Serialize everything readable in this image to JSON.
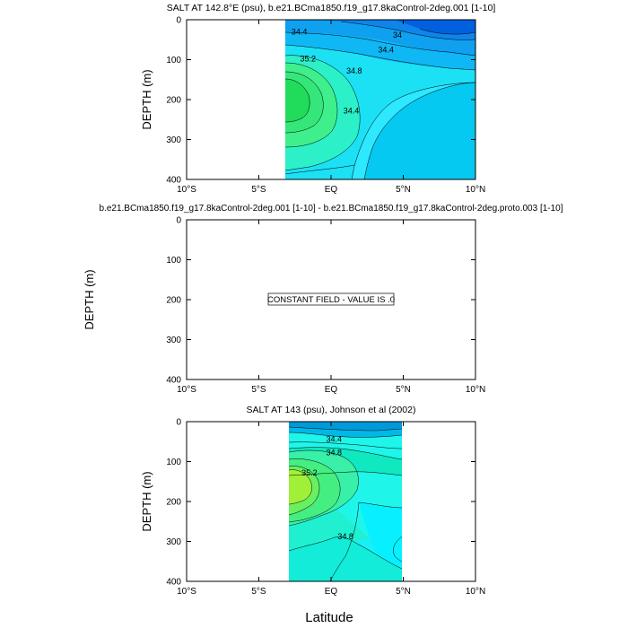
{
  "figure": {
    "x_axis_label": "Latitude"
  },
  "chart_data": [
    {
      "type": "contour",
      "title": "SALT AT 142.8°E (psu), b.e21.BCma1850.f19_g17.8kaControl-2deg.001 [1-10]",
      "ylabel": "DEPTH (m)",
      "xlabel": "",
      "x_ticks": [
        "10°S",
        "5°S",
        "EQ",
        "5°N",
        "10°N"
      ],
      "x_tick_values": [
        -10,
        -5,
        0,
        5,
        10
      ],
      "y_ticks": [
        "0",
        "100",
        "200",
        "300",
        "400"
      ],
      "y_tick_values": [
        0,
        100,
        200,
        300,
        400
      ],
      "xlim": [
        -10,
        10
      ],
      "ylim": [
        400,
        0
      ],
      "data_extent_lat": [
        -2.8,
        10
      ],
      "contour_labels": [
        {
          "text": "34.4",
          "lat": -2.2,
          "depth": 30
        },
        {
          "text": "34",
          "lat": 4.6,
          "depth": 38
        },
        {
          "text": "34.4",
          "lat": 3.8,
          "depth": 75
        },
        {
          "text": "35.2",
          "lat": -1.6,
          "depth": 98
        },
        {
          "text": "34.8",
          "lat": 1.6,
          "depth": 128
        },
        {
          "text": "34.4",
          "lat": 1.4,
          "depth": 228
        }
      ]
    },
    {
      "type": "contour",
      "title": "b.e21.BCma1850.f19_g17.8kaControl-2deg.001 [1-10] - b.e21.BCma1850.f19_g17.8kaControl-2deg.proto.003 [1-10]",
      "ylabel": "DEPTH (m)",
      "xlabel": "",
      "x_ticks": [
        "10°S",
        "5°S",
        "EQ",
        "5°N",
        "10°N"
      ],
      "x_tick_values": [
        -10,
        -5,
        0,
        5,
        10
      ],
      "y_ticks": [
        "0",
        "100",
        "200",
        "300",
        "400"
      ],
      "y_tick_values": [
        0,
        100,
        200,
        300,
        400
      ],
      "xlim": [
        -10,
        10
      ],
      "ylim": [
        400,
        0
      ],
      "annotation": "CONSTANT FIELD - VALUE IS .0"
    },
    {
      "type": "contour",
      "title": "SALT AT 143 (psu), Johnson et al (2002)",
      "ylabel": "DEPTH (m)",
      "xlabel": "",
      "x_ticks": [
        "10°S",
        "5°S",
        "EQ",
        "5°N",
        "10°N"
      ],
      "x_tick_values": [
        -10,
        -5,
        0,
        5,
        10
      ],
      "y_ticks": [
        "0",
        "100",
        "200",
        "300",
        "400"
      ],
      "y_tick_values": [
        0,
        100,
        200,
        300,
        400
      ],
      "xlim": [
        -10,
        10
      ],
      "ylim": [
        400,
        0
      ],
      "data_extent_lat": [
        -2.8,
        5
      ],
      "contour_labels": [
        {
          "text": "34.4",
          "lat": 0.2,
          "depth": 44
        },
        {
          "text": "34.8",
          "lat": 0.2,
          "depth": 78
        },
        {
          "text": "35.2",
          "lat": -1.5,
          "depth": 128
        },
        {
          "text": "34.8",
          "lat": 1.0,
          "depth": 288
        }
      ]
    }
  ]
}
